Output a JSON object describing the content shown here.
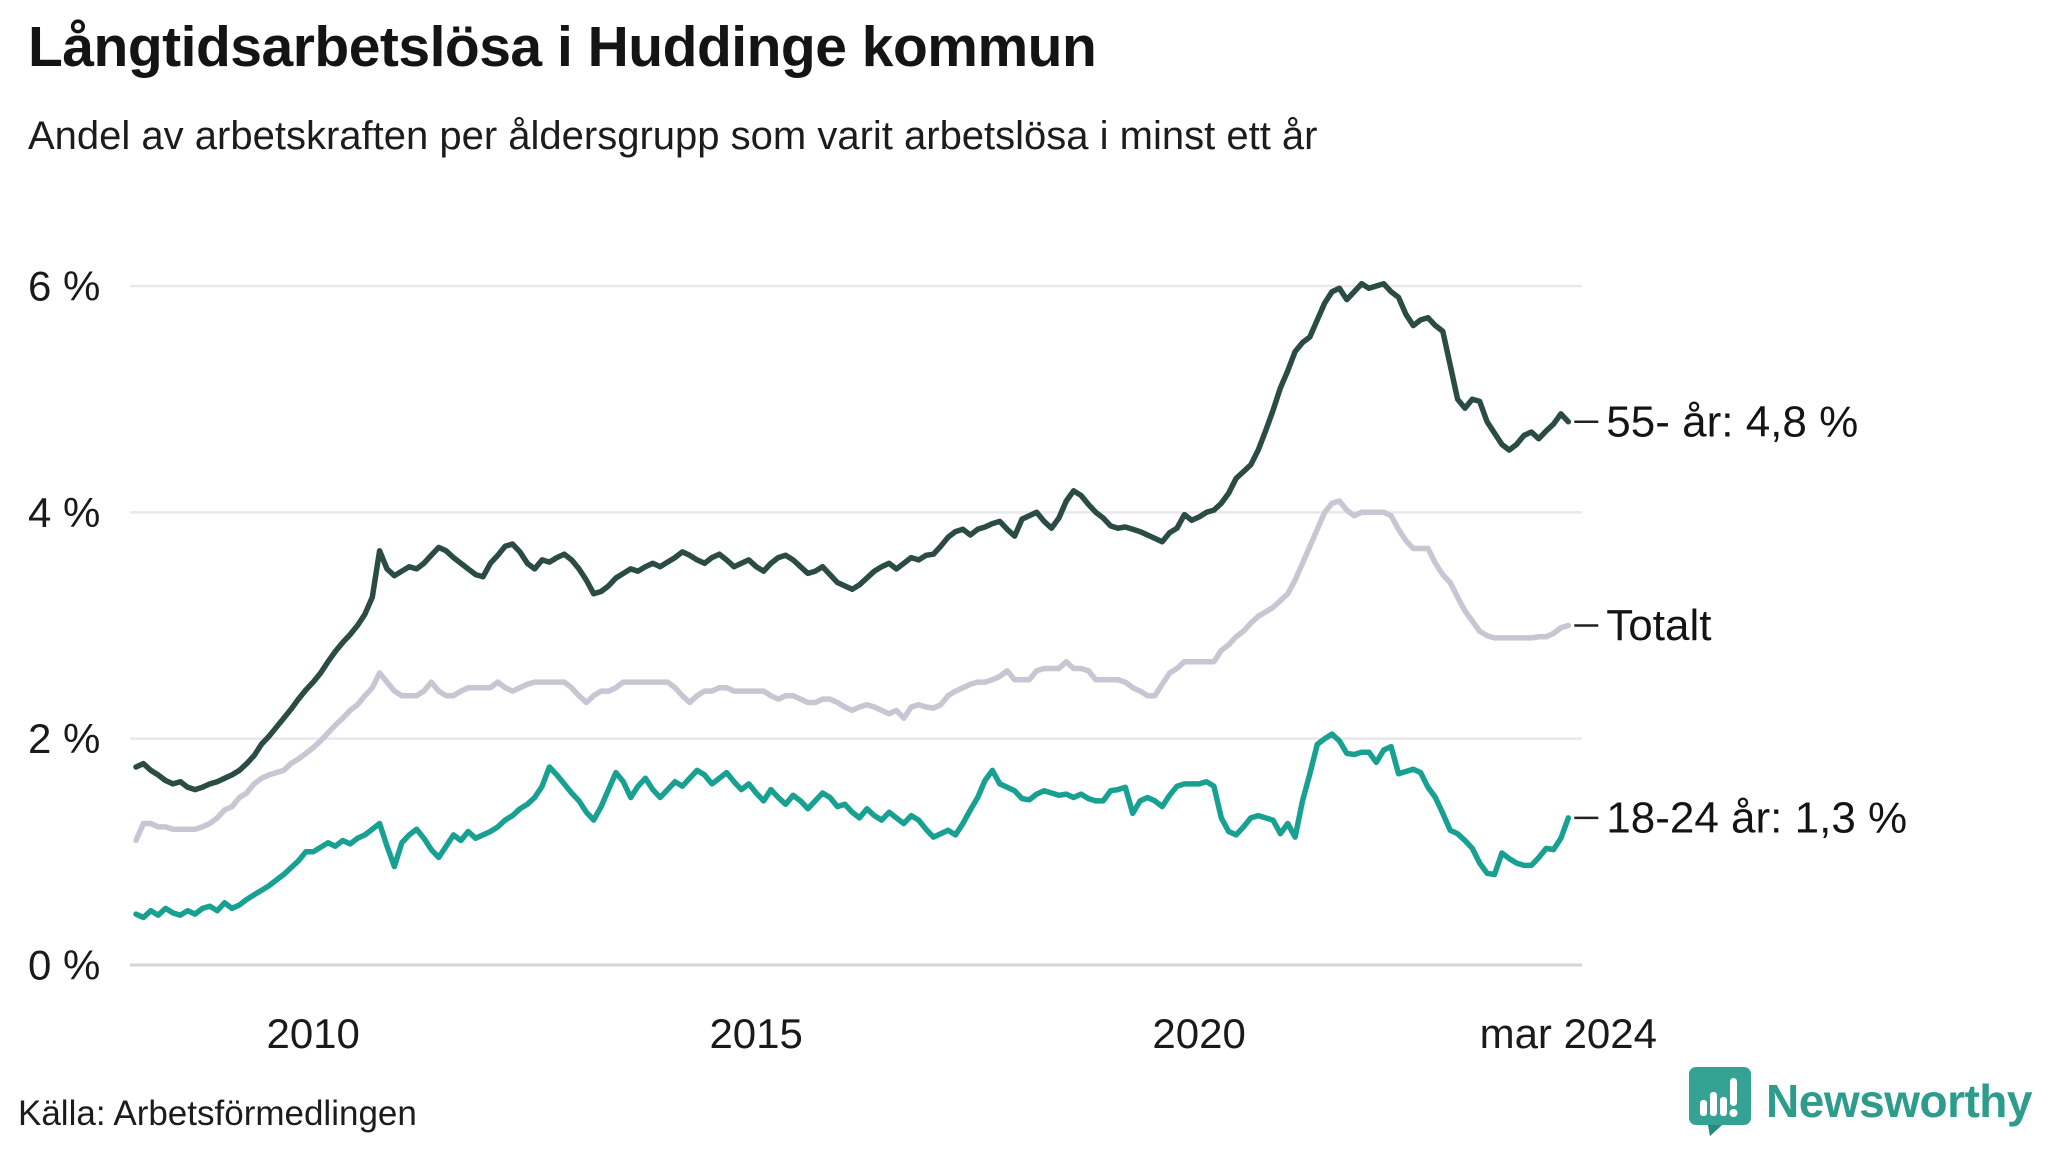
{
  "header": {
    "title": "Långtidsarbetslösa i Huddinge kommun",
    "subtitle": "Andel av arbetskraften per åldersgrupp som varit arbetslösa i minst ett år"
  },
  "footer": {
    "source": "Källa: Arbetsförmedlingen",
    "brand": "Newsworthy"
  },
  "chart_data": {
    "type": "line",
    "title": "Långtidsarbetslösa i Huddinge kommun",
    "subtitle": "Andel av arbetskraften per åldersgrupp som varit arbetslösa i minst ett år",
    "unit": "%",
    "x_start": "2008-01",
    "x_end": "2024-03",
    "ylim": [
      0,
      6.3
    ],
    "grid": "horizontal",
    "legend_position": "end-of-line-labels",
    "colors": {
      "grid": "#e9e7ed",
      "zero_axis": "#d5d2da",
      "text": "#1a1a1a",
      "end_tick": "#222222"
    },
    "y_ticks": [
      {
        "value": 0,
        "label": "0 %"
      },
      {
        "value": 2,
        "label": "2 %"
      },
      {
        "value": 4,
        "label": "4 %"
      },
      {
        "value": 6,
        "label": "6 %"
      }
    ],
    "x_ticks": [
      {
        "month_index": 24,
        "label": "2010"
      },
      {
        "month_index": 84,
        "label": "2015"
      },
      {
        "month_index": 144,
        "label": "2020"
      },
      {
        "month_index": 194,
        "label": "mar 2024"
      }
    ],
    "series": [
      {
        "name": "Totalt",
        "end_label": "Totalt",
        "end_value": 3.0,
        "color": "#c9c5d2",
        "values": [
          1.1,
          1.25,
          1.25,
          1.22,
          1.22,
          1.2,
          1.2,
          1.2,
          1.2,
          1.22,
          1.25,
          1.3,
          1.37,
          1.4,
          1.48,
          1.52,
          1.6,
          1.65,
          1.68,
          1.7,
          1.72,
          1.78,
          1.82,
          1.87,
          1.92,
          1.98,
          2.05,
          2.12,
          2.18,
          2.25,
          2.3,
          2.38,
          2.45,
          2.58,
          2.5,
          2.42,
          2.38,
          2.38,
          2.38,
          2.42,
          2.5,
          2.42,
          2.38,
          2.38,
          2.42,
          2.45,
          2.45,
          2.45,
          2.45,
          2.5,
          2.45,
          2.42,
          2.45,
          2.48,
          2.5,
          2.5,
          2.5,
          2.5,
          2.5,
          2.45,
          2.38,
          2.32,
          2.38,
          2.42,
          2.42,
          2.45,
          2.5,
          2.5,
          2.5,
          2.5,
          2.5,
          2.5,
          2.5,
          2.45,
          2.38,
          2.32,
          2.38,
          2.42,
          2.42,
          2.45,
          2.45,
          2.42,
          2.42,
          2.42,
          2.42,
          2.42,
          2.38,
          2.35,
          2.38,
          2.38,
          2.35,
          2.32,
          2.32,
          2.35,
          2.35,
          2.32,
          2.28,
          2.25,
          2.28,
          2.3,
          2.28,
          2.25,
          2.22,
          2.25,
          2.18,
          2.28,
          2.3,
          2.28,
          2.27,
          2.3,
          2.38,
          2.42,
          2.45,
          2.48,
          2.5,
          2.5,
          2.52,
          2.55,
          2.6,
          2.52,
          2.52,
          2.52,
          2.6,
          2.62,
          2.62,
          2.62,
          2.68,
          2.62,
          2.62,
          2.6,
          2.52,
          2.52,
          2.52,
          2.52,
          2.5,
          2.45,
          2.42,
          2.38,
          2.38,
          2.48,
          2.58,
          2.62,
          2.68,
          2.68,
          2.68,
          2.68,
          2.68,
          2.78,
          2.83,
          2.9,
          2.95,
          3.02,
          3.08,
          3.12,
          3.16,
          3.22,
          3.28,
          3.4,
          3.55,
          3.7,
          3.85,
          4.0,
          4.08,
          4.1,
          4.02,
          3.97,
          4.0,
          4.0,
          4.0,
          4.0,
          3.97,
          3.85,
          3.75,
          3.68,
          3.68,
          3.68,
          3.55,
          3.45,
          3.38,
          3.25,
          3.13,
          3.04,
          2.95,
          2.91,
          2.89,
          2.89,
          2.89,
          2.89,
          2.89,
          2.89,
          2.9,
          2.9,
          2.93,
          2.98,
          3.0
        ]
      },
      {
        "name": "55- år",
        "end_label": "55- år: 4,8 %",
        "end_value": 4.8,
        "color": "#2a4c44",
        "values": [
          1.75,
          1.78,
          1.72,
          1.68,
          1.63,
          1.6,
          1.62,
          1.57,
          1.55,
          1.57,
          1.6,
          1.62,
          1.65,
          1.68,
          1.72,
          1.78,
          1.85,
          1.95,
          2.02,
          2.1,
          2.18,
          2.26,
          2.35,
          2.43,
          2.5,
          2.58,
          2.68,
          2.77,
          2.85,
          2.92,
          3.0,
          3.1,
          3.25,
          3.66,
          3.5,
          3.44,
          3.48,
          3.52,
          3.5,
          3.55,
          3.62,
          3.69,
          3.66,
          3.6,
          3.55,
          3.5,
          3.45,
          3.43,
          3.55,
          3.62,
          3.7,
          3.72,
          3.65,
          3.55,
          3.5,
          3.58,
          3.56,
          3.6,
          3.63,
          3.58,
          3.5,
          3.4,
          3.28,
          3.3,
          3.35,
          3.42,
          3.46,
          3.5,
          3.48,
          3.52,
          3.55,
          3.52,
          3.56,
          3.6,
          3.65,
          3.62,
          3.58,
          3.55,
          3.6,
          3.63,
          3.58,
          3.52,
          3.55,
          3.58,
          3.52,
          3.48,
          3.55,
          3.6,
          3.62,
          3.58,
          3.52,
          3.46,
          3.48,
          3.52,
          3.45,
          3.38,
          3.35,
          3.32,
          3.36,
          3.42,
          3.48,
          3.52,
          3.55,
          3.5,
          3.55,
          3.6,
          3.58,
          3.62,
          3.63,
          3.7,
          3.78,
          3.83,
          3.85,
          3.8,
          3.85,
          3.87,
          3.9,
          3.92,
          3.85,
          3.79,
          3.94,
          3.97,
          4.0,
          3.92,
          3.86,
          3.95,
          4.1,
          4.19,
          4.15,
          4.07,
          4.0,
          3.95,
          3.88,
          3.86,
          3.87,
          3.85,
          3.83,
          3.8,
          3.77,
          3.74,
          3.82,
          3.86,
          3.98,
          3.93,
          3.96,
          4.0,
          4.02,
          4.08,
          4.17,
          4.3,
          4.36,
          4.42,
          4.55,
          4.72,
          4.9,
          5.1,
          5.25,
          5.42,
          5.5,
          5.55,
          5.7,
          5.85,
          5.95,
          5.98,
          5.88,
          5.95,
          6.02,
          5.98,
          6.0,
          6.02,
          5.95,
          5.9,
          5.75,
          5.65,
          5.7,
          5.72,
          5.65,
          5.6,
          5.3,
          5.0,
          4.92,
          5.0,
          4.98,
          4.8,
          4.7,
          4.6,
          4.55,
          4.6,
          4.68,
          4.71,
          4.65,
          4.72,
          4.78,
          4.87,
          4.8
        ]
      },
      {
        "name": "18-24 år",
        "end_label": "18-24 år: 1,3 %",
        "end_value": 1.3,
        "color": "#18a193",
        "values": [
          0.45,
          0.42,
          0.48,
          0.44,
          0.5,
          0.46,
          0.44,
          0.48,
          0.45,
          0.5,
          0.52,
          0.48,
          0.55,
          0.5,
          0.53,
          0.58,
          0.62,
          0.66,
          0.7,
          0.75,
          0.8,
          0.86,
          0.92,
          1.0,
          1.0,
          1.04,
          1.08,
          1.05,
          1.1,
          1.07,
          1.12,
          1.15,
          1.2,
          1.25,
          1.05,
          0.87,
          1.08,
          1.15,
          1.2,
          1.12,
          1.02,
          0.95,
          1.05,
          1.15,
          1.1,
          1.18,
          1.12,
          1.15,
          1.18,
          1.22,
          1.28,
          1.32,
          1.38,
          1.42,
          1.48,
          1.58,
          1.75,
          1.68,
          1.6,
          1.52,
          1.45,
          1.35,
          1.28,
          1.4,
          1.55,
          1.7,
          1.62,
          1.48,
          1.58,
          1.65,
          1.55,
          1.48,
          1.55,
          1.62,
          1.58,
          1.65,
          1.72,
          1.68,
          1.6,
          1.65,
          1.7,
          1.62,
          1.55,
          1.6,
          1.52,
          1.45,
          1.55,
          1.48,
          1.42,
          1.5,
          1.45,
          1.38,
          1.45,
          1.52,
          1.48,
          1.4,
          1.42,
          1.35,
          1.3,
          1.38,
          1.32,
          1.28,
          1.35,
          1.3,
          1.25,
          1.32,
          1.28,
          1.2,
          1.13,
          1.16,
          1.19,
          1.15,
          1.25,
          1.37,
          1.48,
          1.63,
          1.72,
          1.6,
          1.57,
          1.54,
          1.47,
          1.46,
          1.51,
          1.54,
          1.52,
          1.5,
          1.51,
          1.48,
          1.51,
          1.47,
          1.45,
          1.45,
          1.54,
          1.55,
          1.57,
          1.34,
          1.45,
          1.48,
          1.45,
          1.4,
          1.5,
          1.58,
          1.6,
          1.6,
          1.6,
          1.62,
          1.58,
          1.3,
          1.18,
          1.15,
          1.22,
          1.3,
          1.32,
          1.3,
          1.28,
          1.16,
          1.25,
          1.13,
          1.45,
          1.69,
          1.95,
          2.0,
          2.04,
          1.98,
          1.87,
          1.86,
          1.88,
          1.88,
          1.79,
          1.9,
          1.93,
          1.69,
          1.71,
          1.73,
          1.7,
          1.57,
          1.48,
          1.34,
          1.19,
          1.16,
          1.1,
          1.03,
          0.9,
          0.81,
          0.8,
          0.99,
          0.94,
          0.9,
          0.88,
          0.88,
          0.95,
          1.03,
          1.02,
          1.12,
          1.3
        ]
      }
    ]
  }
}
